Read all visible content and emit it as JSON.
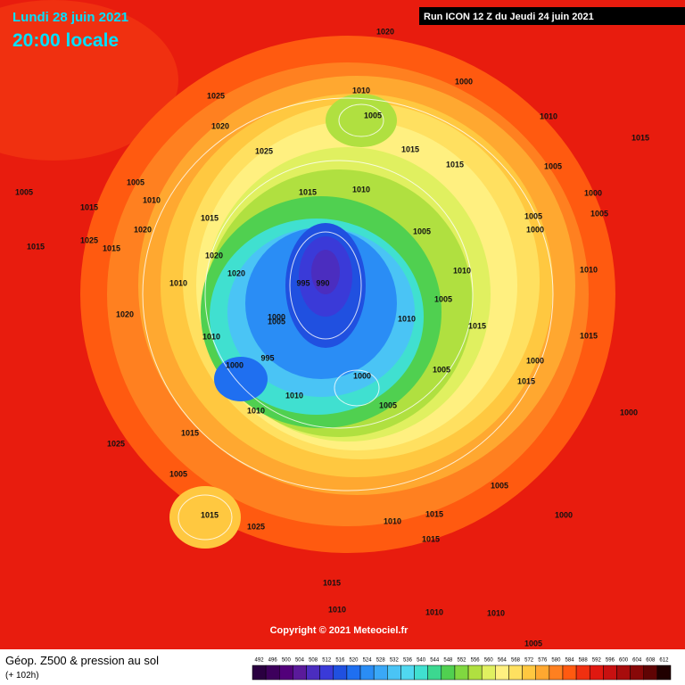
{
  "header": {
    "date": "Lundi 28 juin 2021",
    "time": "20:00 locale",
    "run": "Run ICON 12 Z du Jeudi 24 juin 2021"
  },
  "footer": {
    "copyright": "Copyright © 2021 Meteociel.fr",
    "title": "Géop. Z500 & pression au sol",
    "lead": "(+ 102h)"
  },
  "isobars": [
    1020,
    1025,
    1010,
    1005,
    1000,
    1020,
    1025,
    1015,
    1010,
    1015,
    1005,
    1015,
    1005,
    1010,
    1015,
    1020,
    1015,
    1025,
    1015,
    1020,
    1010,
    1020,
    1010,
    1005,
    995,
    990,
    1000,
    1005,
    1010,
    1010,
    1015,
    1005,
    1000,
    995,
    1000,
    1010,
    1000,
    1005,
    1015,
    1020,
    1025,
    1015,
    1025,
    1005,
    1010,
    1015,
    1015,
    1005,
    1015,
    1000,
    1000,
    1005,
    1000,
    1010,
    1015,
    1005,
    1015,
    1010,
    1015,
    1010,
    1005,
    1010,
    1010,
    1015,
    1000,
    1005,
    1010,
    1005
  ],
  "scale": {
    "values": [
      492,
      496,
      500,
      504,
      508,
      512,
      516,
      520,
      524,
      528,
      532,
      536,
      540,
      544,
      548,
      552,
      556,
      560,
      564,
      568,
      572,
      576,
      580,
      584,
      588,
      592,
      596,
      600,
      604,
      608,
      612
    ],
    "colors": [
      "#2a0040",
      "#3d005c",
      "#52007a",
      "#5a1a9a",
      "#4b2dbf",
      "#3a3ad8",
      "#2050e0",
      "#1f6ff0",
      "#2a8df5",
      "#3aa8f7",
      "#4ac4f5",
      "#50d8f0",
      "#40e0d0",
      "#3cd890",
      "#50d050",
      "#80d840",
      "#b0e040",
      "#e0f060",
      "#fff080",
      "#ffe060",
      "#ffc840",
      "#ffa830",
      "#ff8020",
      "#ff5a10",
      "#f03010",
      "#e01810",
      "#c81010",
      "#a80c0c",
      "#880808",
      "#600404",
      "#200000"
    ]
  }
}
